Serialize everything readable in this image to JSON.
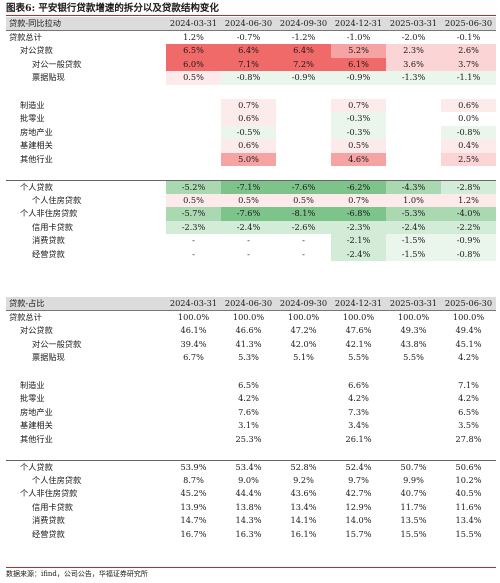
{
  "figure_title": "图表6: 平安银行贷款增速的拆分以及贷款结构变化",
  "columns": [
    "2024-03-31",
    "2024-06-30",
    "2024-09-30",
    "2024-12-31",
    "2025-03-31",
    "2025-06-30"
  ],
  "colors": {
    "red_strong": "#f06a6a",
    "red_mid": "#f6a3a3",
    "red_light": "#fbd5d5",
    "red_pale": "#fdeaea",
    "green_strong": "#7cc48a",
    "green_mid": "#a9d8b1",
    "green_light": "#d3ecd7",
    "green_pale": "#eaf6ec",
    "header_grey": "#dcdcdc"
  },
  "table1": {
    "header": "贷款-同比拉动",
    "rows": [
      {
        "label": "贷款总计",
        "values": [
          "1.2%",
          "-0.7%",
          "-1.2%",
          "-1.0%",
          "-2.0%",
          "-0.1%"
        ]
      },
      {
        "label": "对公贷款",
        "values": [
          "6.5%",
          "6.4%",
          "6.4%",
          "5.2%",
          "2.3%",
          "2.6%"
        ]
      },
      {
        "label": "对公一般贷款",
        "values": [
          "6.0%",
          "7.1%",
          "7.2%",
          "6.1%",
          "3.6%",
          "3.7%"
        ]
      },
      {
        "label": "票据贴现",
        "values": [
          "0.5%",
          "-0.8%",
          "-0.9%",
          "-0.9%",
          "-1.3%",
          "-1.1%"
        ]
      },
      {
        "label": "制造业",
        "values": [
          "",
          "0.7%",
          "",
          "0.7%",
          "",
          "0.6%"
        ]
      },
      {
        "label": "批零业",
        "values": [
          "",
          "0.6%",
          "",
          "-0.3%",
          "",
          "0.0%"
        ]
      },
      {
        "label": "房地产业",
        "values": [
          "",
          "-0.5%",
          "",
          "-0.3%",
          "",
          "-0.8%"
        ]
      },
      {
        "label": "基建相关",
        "values": [
          "",
          "0.6%",
          "",
          "0.5%",
          "",
          "0.4%"
        ]
      },
      {
        "label": "其他行业",
        "values": [
          "",
          "5.0%",
          "",
          "4.6%",
          "",
          "2.5%"
        ]
      },
      {
        "label": "个人贷款",
        "values": [
          "-5.2%",
          "-7.1%",
          "-7.6%",
          "-6.2%",
          "-4.3%",
          "-2.8%"
        ]
      },
      {
        "label": "个人住房贷款",
        "values": [
          "0.5%",
          "0.5%",
          "0.5%",
          "0.7%",
          "1.0%",
          "1.2%"
        ]
      },
      {
        "label": "个人非住房贷款",
        "values": [
          "-5.7%",
          "-7.6%",
          "-8.1%",
          "-6.8%",
          "-5.3%",
          "-4.0%"
        ]
      },
      {
        "label": "信用卡贷款",
        "values": [
          "-2.3%",
          "-2.4%",
          "-2.6%",
          "-2.3%",
          "-2.4%",
          "-2.2%"
        ]
      },
      {
        "label": "消费贷款",
        "values": [
          "-",
          "-",
          "-",
          "-2.1%",
          "-1.5%",
          "-0.9%"
        ]
      },
      {
        "label": "经营贷款",
        "values": [
          "-",
          "-",
          "-",
          "-2.4%",
          "-1.5%",
          "-0.8%"
        ]
      }
    ]
  },
  "table2": {
    "header": "贷款-占比",
    "rows": [
      {
        "label": "贷款总计",
        "values": [
          "100.0%",
          "100.0%",
          "100.0%",
          "100.0%",
          "100.0%",
          "100.0%"
        ]
      },
      {
        "label": "对公贷款",
        "values": [
          "46.1%",
          "46.6%",
          "47.2%",
          "47.6%",
          "49.3%",
          "49.4%"
        ]
      },
      {
        "label": "对公一般贷款",
        "values": [
          "39.4%",
          "41.3%",
          "42.0%",
          "42.1%",
          "43.8%",
          "45.1%"
        ]
      },
      {
        "label": "票据贴现",
        "values": [
          "6.7%",
          "5.3%",
          "5.1%",
          "5.5%",
          "5.5%",
          "4.2%"
        ]
      },
      {
        "label": "制造业",
        "values": [
          "",
          "6.5%",
          "",
          "6.6%",
          "",
          "7.1%"
        ]
      },
      {
        "label": "批零业",
        "values": [
          "",
          "4.2%",
          "",
          "4.2%",
          "",
          "4.2%"
        ]
      },
      {
        "label": "房地产业",
        "values": [
          "",
          "7.6%",
          "",
          "7.3%",
          "",
          "6.5%"
        ]
      },
      {
        "label": "基建相关",
        "values": [
          "",
          "3.1%",
          "",
          "3.4%",
          "",
          "3.5%"
        ]
      },
      {
        "label": "其他行业",
        "values": [
          "",
          "25.3%",
          "",
          "26.1%",
          "",
          "27.8%"
        ]
      },
      {
        "label": "个人贷款",
        "values": [
          "53.9%",
          "53.4%",
          "52.8%",
          "52.4%",
          "50.7%",
          "50.6%"
        ]
      },
      {
        "label": "个人住房贷款",
        "values": [
          "8.7%",
          "9.0%",
          "9.2%",
          "9.7%",
          "9.9%",
          "10.2%"
        ]
      },
      {
        "label": "个人非住房贷款",
        "values": [
          "45.2%",
          "44.4%",
          "43.6%",
          "42.7%",
          "40.7%",
          "40.5%"
        ]
      },
      {
        "label": "信用卡贷款",
        "values": [
          "13.9%",
          "13.8%",
          "13.4%",
          "12.9%",
          "11.7%",
          "11.6%"
        ]
      },
      {
        "label": "消费贷款",
        "values": [
          "14.7%",
          "14.3%",
          "14.1%",
          "14.0%",
          "13.5%",
          "13.4%"
        ]
      },
      {
        "label": "经营贷款",
        "values": [
          "16.7%",
          "16.3%",
          "16.1%",
          "15.7%",
          "15.5%",
          "15.5%"
        ]
      }
    ]
  },
  "source": "数据来源：ifind，公司公告，华福证券研究所"
}
